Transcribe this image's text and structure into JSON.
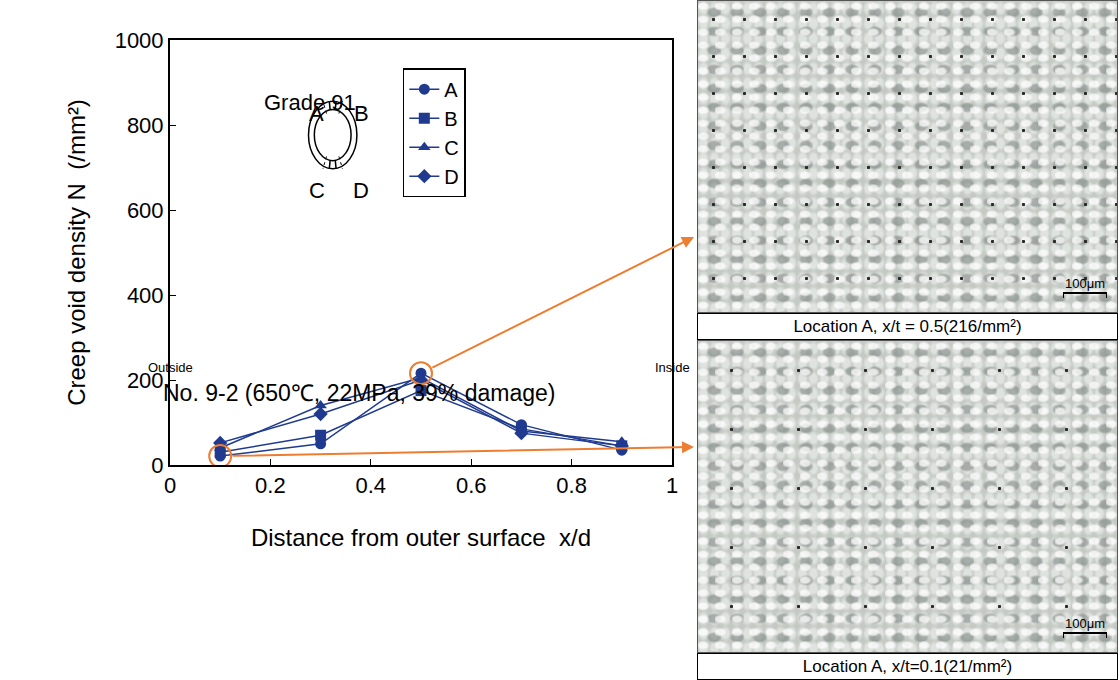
{
  "chart_data": {
    "type": "line",
    "caption": "No. 9-2 (650℃, 22MPa, 39% damage)",
    "annotations": [
      "Grade 91"
    ],
    "x_label": "Distance from outer surface  x/d",
    "y_label": "Creep void density N  (/mm²)",
    "x_end_labels": [
      "Outside",
      "Inside"
    ],
    "x": [
      0.1,
      0.3,
      0.5,
      0.7,
      0.9
    ],
    "series": [
      {
        "name": "A",
        "color": "#1f3a8f",
        "marker": "circle",
        "values": [
          21,
          50,
          216,
          95,
          35
        ]
      },
      {
        "name": "B",
        "color": "#1f3a8f",
        "marker": "square",
        "values": [
          30,
          70,
          175,
          85,
          45
        ]
      },
      {
        "name": "C",
        "color": "#1f3a8f",
        "marker": "triangle-up",
        "values": [
          40,
          140,
          205,
          80,
          55
        ]
      },
      {
        "name": "D",
        "color": "#1f3a8f",
        "marker": "diamond",
        "values": [
          52,
          120,
          200,
          75,
          45
        ]
      }
    ],
    "xlim": [
      0,
      1
    ],
    "xticks": [
      0,
      0.2,
      0.4,
      0.6,
      0.8,
      1
    ],
    "ylim": [
      0,
      1000
    ],
    "yticks": [
      0,
      200,
      400,
      600,
      800,
      1000
    ],
    "grid": false,
    "legend": "top right",
    "micrographs": [
      {
        "series": "A",
        "x": 0.5,
        "value": 216,
        "caption": "Location A, x/t = 0.5(216/mm²)",
        "scale_bar": "100μm"
      },
      {
        "series": "A",
        "x": 0.1,
        "value": 21,
        "caption": "Location A, x/t=0.1(21/mm²)",
        "scale_bar": "100μm"
      }
    ]
  }
}
